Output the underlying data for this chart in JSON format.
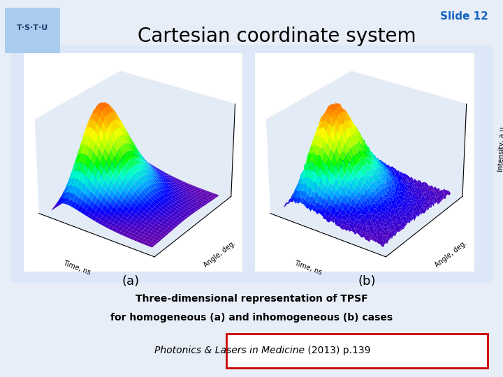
{
  "title": "Cartesian coordinate system",
  "slide_label": "Slide 12",
  "label_a": "(a)",
  "label_b": "(b)",
  "caption_line1": "Three-dimensional representation of TPSF",
  "caption_line2": "for homogeneous (a) and inhomogeneous (b) cases",
  "reference_italic": "Photonics & Lasers in Medicine",
  "reference_normal": " (2013) p.139",
  "bg_color": "#d6e0f0",
  "slide_bg": "#e8eef8",
  "title_color": "#000000",
  "slide_label_color": "#1565c0",
  "caption_color": "#000000",
  "ref_box_color": "#cc0000",
  "xlabel": "Time, ns",
  "ylabel": "Angle, deg.",
  "zlabel": "Intensity, a.u."
}
